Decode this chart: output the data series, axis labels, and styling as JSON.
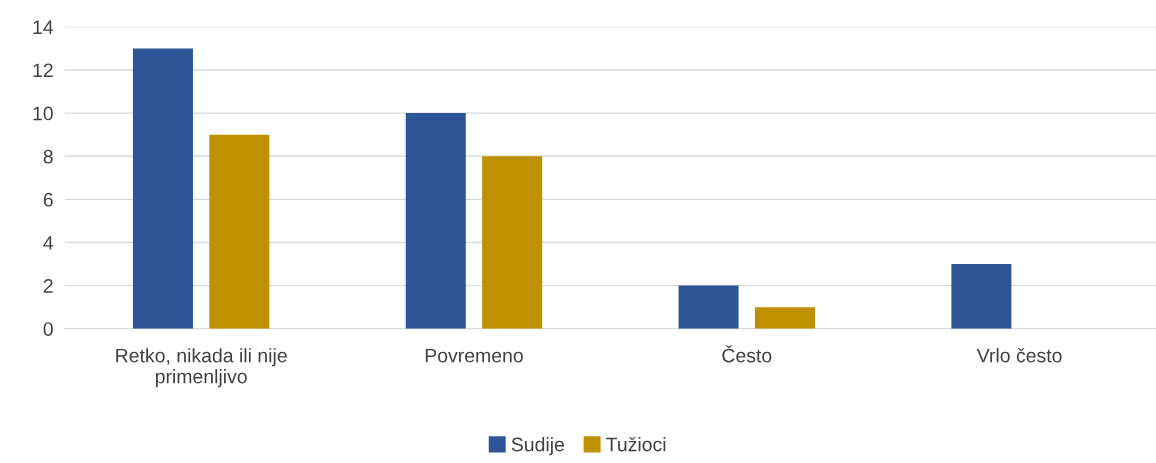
{
  "chart_data": {
    "type": "bar",
    "categories": [
      "Retko, nikada ili nije\nprimenljivo",
      "Povremeno",
      "Često",
      "Vrlo često"
    ],
    "series": [
      {
        "name": "Sudije",
        "color": "#2f5597",
        "values": [
          13,
          10,
          2,
          3
        ]
      },
      {
        "name": "Tužioci",
        "color": "#bf9000",
        "values": [
          9,
          8,
          1,
          0
        ]
      }
    ],
    "ylim": [
      0,
      14
    ],
    "yticks": [
      0,
      2,
      4,
      6,
      8,
      10,
      12,
      14
    ],
    "grid": "y",
    "legend": "bottom"
  }
}
